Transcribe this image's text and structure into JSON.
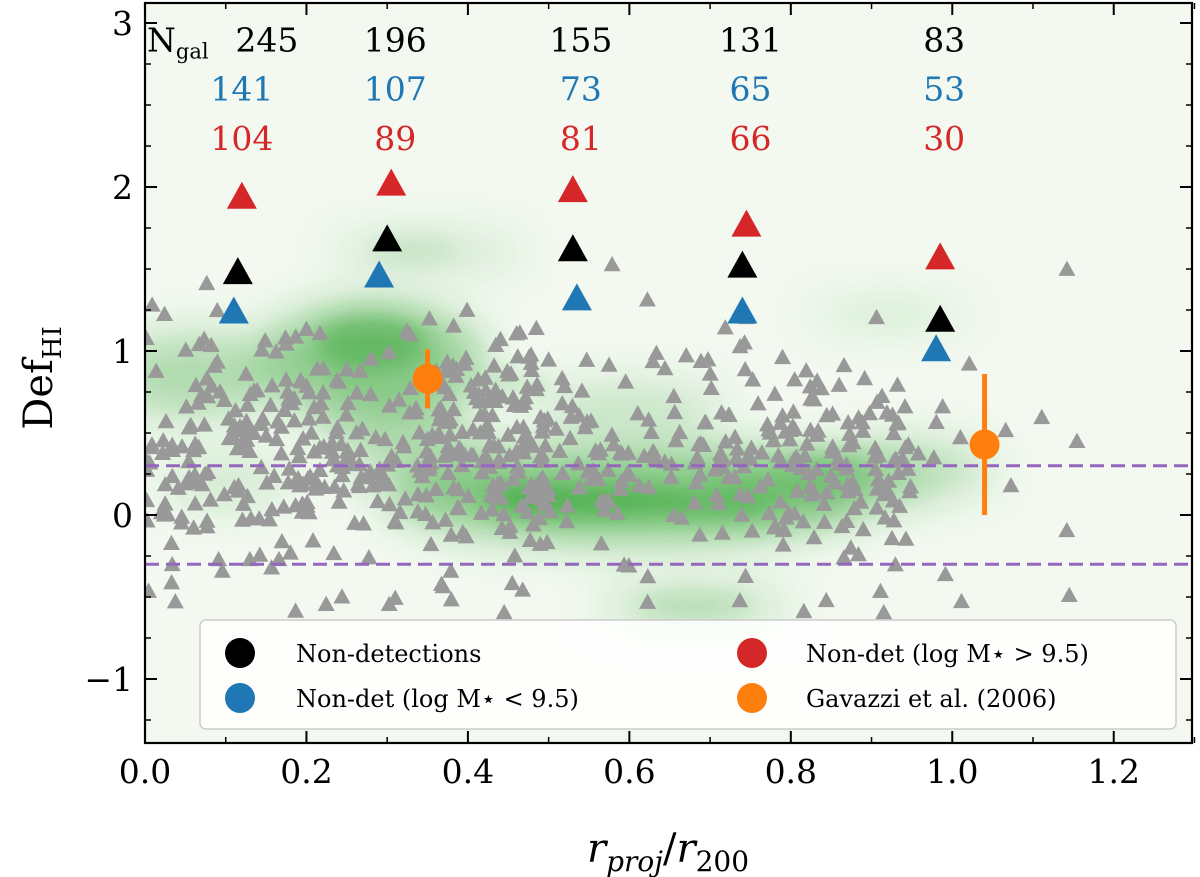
{
  "chart_data": {
    "type": "scatter",
    "xlabel_main": "r",
    "xlabel_main_sub": "proj",
    "xlabel_slash": "/",
    "xlabel_denom": "r",
    "xlabel_denom_sub": "200",
    "ylabel_main": "Def",
    "ylabel_sub": "HI",
    "xlim": [
      0.0,
      1.3
    ],
    "ylim": [
      -1.4,
      3.1
    ],
    "x_ticks": [
      0.0,
      0.2,
      0.4,
      0.6,
      0.8,
      1.0,
      1.2
    ],
    "x_tick_labels": [
      "0.0",
      "0.2",
      "0.4",
      "0.6",
      "0.8",
      "1.0",
      "1.2"
    ],
    "y_ticks": [
      -1,
      0,
      1,
      2,
      3
    ],
    "y_tick_labels": [
      "−1",
      "0",
      "1",
      "2",
      "3"
    ],
    "reference_lines": [
      0.3,
      -0.3
    ],
    "ngal_label": "N",
    "ngal_sub": "gal",
    "ngal_x": [
      0.12,
      0.31,
      0.54,
      0.75,
      0.99
    ],
    "ngal_rows": [
      {
        "color": "#000000",
        "y": 2.9,
        "values": [
          "245",
          "196",
          "155",
          "131",
          "83"
        ]
      },
      {
        "color": "#1f77b4",
        "y": 2.6,
        "values": [
          "141",
          "107",
          "73",
          "65",
          "53"
        ]
      },
      {
        "color": "#d62728",
        "y": 2.3,
        "values": [
          "104",
          "89",
          "81",
          "66",
          "30"
        ]
      }
    ],
    "series": [
      {
        "name": "Non-detections",
        "color": "#000000",
        "marker": "triangle",
        "x": [
          0.115,
          0.3,
          0.53,
          0.74,
          0.985
        ],
        "y": [
          1.47,
          1.67,
          1.61,
          1.51,
          1.18
        ]
      },
      {
        "name": "Non-det (log M⋆ > 9.5)",
        "color": "#d62728",
        "marker": "triangle",
        "x": [
          0.12,
          0.305,
          0.53,
          0.745,
          0.985
        ],
        "y": [
          1.93,
          2.01,
          1.97,
          1.76,
          1.56
        ]
      },
      {
        "name": "Non-det (log M⋆ < 9.5)",
        "color": "#1f77b4",
        "marker": "triangle",
        "x": [
          0.11,
          0.29,
          0.535,
          0.74,
          0.98
        ],
        "y": [
          1.23,
          1.45,
          1.31,
          1.23,
          1.0
        ]
      },
      {
        "name": "Gavazzi et al. (2006)",
        "color": "#ff7f0e",
        "marker": "circle",
        "x": [
          0.35,
          1.04
        ],
        "y": [
          0.83,
          0.43
        ],
        "yerr_low": [
          0.65,
          0.0
        ],
        "yerr_high": [
          1.01,
          0.86
        ]
      }
    ],
    "background_points": {
      "color": "#999999",
      "marker": "triangle",
      "count": 700,
      "x_range": [
        0.0,
        1.16
      ],
      "y_range": [
        -0.6,
        1.75
      ]
    },
    "density_contours_color": "#2ca02c",
    "legend": {
      "placement": "bottom",
      "entries": [
        {
          "label": "Non-detections",
          "color": "#000000"
        },
        {
          "label": "Non-det (log M⋆ > 9.5)",
          "color": "#d62728"
        },
        {
          "label": "Non-det (log M⋆ < 9.5)",
          "color": "#1f77b4"
        },
        {
          "label": "Gavazzi et al. (2006)",
          "color": "#ff7f0e"
        }
      ]
    }
  }
}
